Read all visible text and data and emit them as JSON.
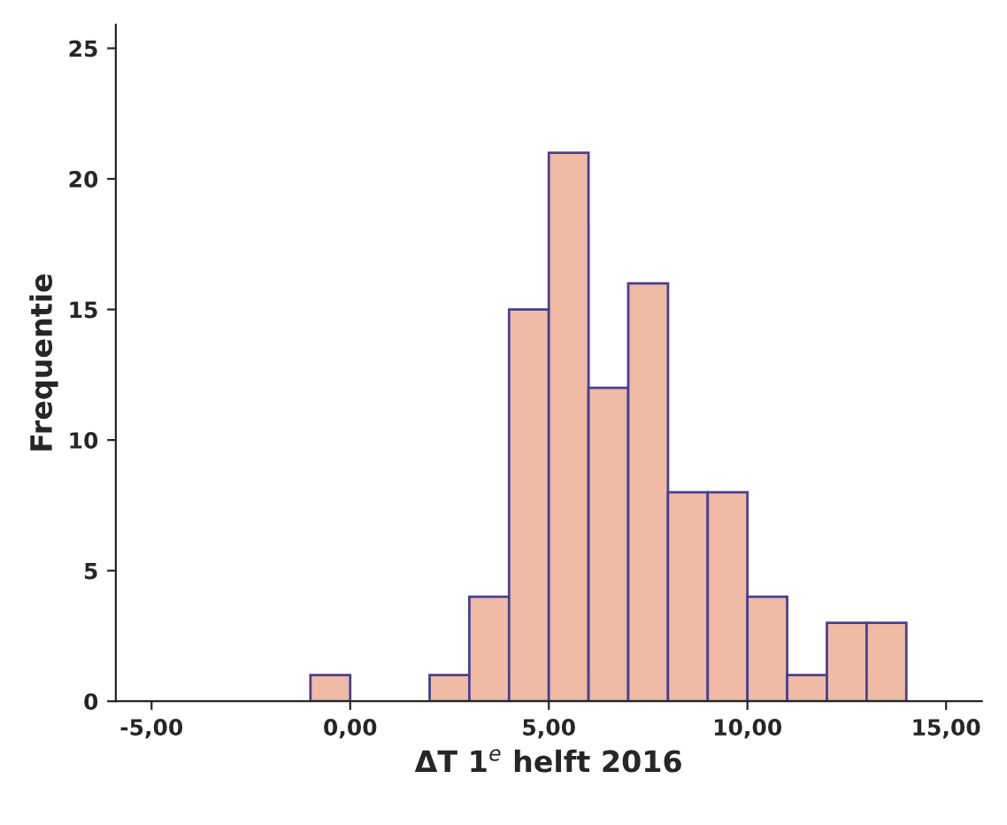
{
  "chart_data": {
    "type": "histogram",
    "xlabel": "ΔT 1$^{e}$ helft 2016",
    "ylabel": "Frequentie",
    "bins": [
      -1,
      0,
      1,
      2,
      3,
      4,
      5,
      6,
      7,
      8,
      9,
      10,
      11,
      12,
      13,
      14
    ],
    "values": [
      1,
      0,
      0,
      1,
      4,
      15,
      21,
      12,
      16,
      8,
      8,
      4,
      1,
      3,
      3
    ],
    "color": "#efbba5",
    "xlim": [
      -5.9,
      15.9
    ],
    "ylim": [
      0,
      25.9
    ],
    "xticks": [
      {
        "value": -5,
        "label": "-5,00"
      },
      {
        "value": 0,
        "label": "0,00"
      },
      {
        "value": 5,
        "label": "5,00"
      },
      {
        "value": 10,
        "label": "10,00"
      },
      {
        "value": 15,
        "label": "15,00"
      }
    ],
    "yticks": [
      0,
      5,
      10,
      15,
      20,
      25
    ],
    "grid": false
  }
}
